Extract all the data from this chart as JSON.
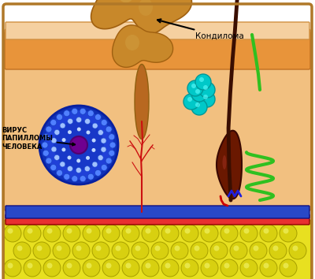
{
  "bg_color": "#ffffff",
  "skin_peach": "#F2C080",
  "skin_orange": "#E8943A",
  "skin_light": "#F5D0A0",
  "fat_color": "#E8E020",
  "fat_cell_color": "#D8D010",
  "fat_highlight": "#F0F060",
  "red_layer": "#E83030",
  "blue_layer": "#2848C8",
  "condyloma_base": "#C8882A",
  "condyloma_light": "#D4A84B",
  "condyloma_dark": "#A06010",
  "hair_color": "#3A0E00",
  "follicle_color": "#6A1800",
  "sebaceous_color": "#00C8C8",
  "sebaceous_hi": "#60FFFF",
  "nerve_color": "#30C020",
  "virus_dark": "#1030B8",
  "virus_mid": "#2040D8",
  "virus_light": "#4060F0",
  "virus_dot_outer": "#5080FF",
  "virus_dot_mid": "#80A8FF",
  "virus_center": "#700090",
  "blood_color": "#CC1010",
  "text_color": "#000000",
  "label_kondiloma": "Кондилома",
  "label_virus_line1": "ВИРУС",
  "label_virus_line2": "ПАПИЛЛОМЫ",
  "label_virus_line3": "ЧЕЛОВЕКА"
}
